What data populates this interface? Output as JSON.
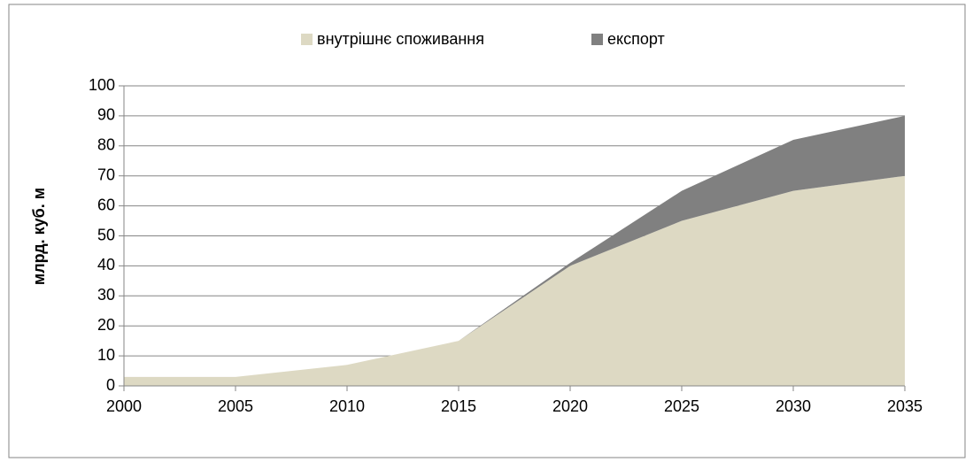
{
  "chart_data": {
    "type": "stacked_area",
    "y_label": "млрд. куб. м",
    "x": [
      2000,
      2005,
      2010,
      2015,
      2020,
      2025,
      2030,
      2035
    ],
    "xlim": [
      2000,
      2035
    ],
    "xticks": [
      2000,
      2005,
      2010,
      2015,
      2020,
      2025,
      2030,
      2035
    ],
    "ylim": [
      0,
      100
    ],
    "yticks": [
      0,
      10,
      20,
      30,
      40,
      50,
      60,
      70,
      80,
      90,
      100
    ],
    "grid": true,
    "legend": "top",
    "series": [
      {
        "name": "внутрішнє споживання",
        "color": "#ddd9c3",
        "values": [
          3,
          3,
          7,
          15,
          40,
          55,
          65,
          70
        ]
      },
      {
        "name": "експорт",
        "color": "#808080",
        "values": [
          0,
          0,
          0,
          0,
          1,
          10,
          17,
          20
        ]
      }
    ]
  }
}
